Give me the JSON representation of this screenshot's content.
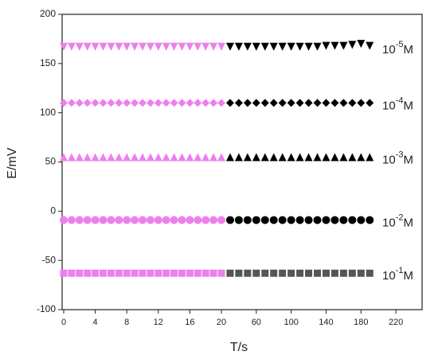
{
  "chart_data": {
    "type": "scatter",
    "x_label": "T/s",
    "y_label": "E/mV",
    "ylim": [
      -100,
      200
    ],
    "yticks": [
      -100,
      -50,
      0,
      50,
      100,
      150,
      200
    ],
    "x_segments": [
      {
        "xlim": [
          0,
          20
        ],
        "xticks": [
          0,
          4,
          8,
          12,
          16,
          20
        ],
        "x": [
          0,
          1,
          2,
          3,
          4,
          5,
          6,
          7,
          8,
          9,
          10,
          11,
          12,
          13,
          14,
          15,
          16,
          17,
          18,
          19,
          20
        ]
      },
      {
        "xlim": [
          20,
          250
        ],
        "xticks": [
          60,
          100,
          140,
          180,
          220
        ],
        "x": [
          30,
          40,
          50,
          60,
          70,
          80,
          90,
          100,
          110,
          120,
          130,
          140,
          150,
          160,
          170,
          180,
          190
        ]
      }
    ],
    "series": [
      {
        "label": [
          "10",
          "-5",
          "M"
        ],
        "marker": "triangle-down",
        "segments": [
          {
            "color": "#ee7eee",
            "values": [
              167,
              167,
              167,
              167,
              167,
              167,
              167,
              167,
              167,
              167,
              167,
              167,
              167,
              167,
              167,
              167,
              167,
              167,
              167,
              167,
              167
            ]
          },
          {
            "color": "#000000",
            "values": [
              167,
              167,
              167,
              167,
              167,
              167,
              167,
              167,
              167,
              167,
              167,
              168,
              168,
              168,
              169,
              170,
              168
            ]
          }
        ]
      },
      {
        "label": [
          "10",
          "-4",
          "M"
        ],
        "marker": "diamond",
        "segments": [
          {
            "color": "#ee7eee",
            "values": [
              110,
              110,
              110,
              110,
              110,
              110,
              110,
              110,
              110,
              110,
              110,
              110,
              110,
              110,
              110,
              110,
              110,
              110,
              110,
              110,
              110
            ]
          },
          {
            "color": "#000000",
            "values": [
              110,
              110,
              110,
              110,
              110,
              110,
              110,
              110,
              110,
              110,
              110,
              110,
              110,
              110,
              110,
              110,
              110
            ]
          }
        ]
      },
      {
        "label": [
          "10",
          "-3",
          "M"
        ],
        "marker": "triangle-up",
        "segments": [
          {
            "color": "#ee7eee",
            "values": [
              55,
              55,
              55,
              55,
              55,
              55,
              55,
              55,
              55,
              55,
              55,
              55,
              55,
              55,
              55,
              55,
              55,
              55,
              55,
              55,
              55
            ]
          },
          {
            "color": "#000000",
            "values": [
              55,
              55,
              55,
              55,
              55,
              55,
              55,
              55,
              55,
              55,
              55,
              55,
              55,
              55,
              55,
              55,
              55
            ]
          }
        ]
      },
      {
        "label": [
          "10",
          "-2",
          "M"
        ],
        "marker": "circle",
        "segments": [
          {
            "color": "#ee7eee",
            "values": [
              -9,
              -9,
              -9,
              -9,
              -9,
              -9,
              -9,
              -9,
              -9,
              -9,
              -9,
              -9,
              -9,
              -9,
              -9,
              -9,
              -9,
              -9,
              -9,
              -9,
              -9
            ]
          },
          {
            "color": "#000000",
            "values": [
              -9,
              -9,
              -9,
              -9,
              -9,
              -9,
              -9,
              -9,
              -9,
              -9,
              -9,
              -9,
              -9,
              -9,
              -9,
              -9,
              -9
            ]
          }
        ]
      },
      {
        "label": [
          "10",
          "-1",
          "M"
        ],
        "marker": "square",
        "segments": [
          {
            "color": "#ee7eee",
            "values": [
              -63,
              -63,
              -63,
              -63,
              -63,
              -63,
              -63,
              -63,
              -63,
              -63,
              -63,
              -63,
              -63,
              -63,
              -63,
              -63,
              -63,
              -63,
              -63,
              -63,
              -63
            ]
          },
          {
            "color": "#555555",
            "values": [
              -63,
              -63,
              -63,
              -63,
              -63,
              -63,
              -63,
              -63,
              -63,
              -63,
              -63,
              -63,
              -63,
              -63,
              -63,
              -63,
              -63
            ]
          }
        ]
      }
    ]
  }
}
